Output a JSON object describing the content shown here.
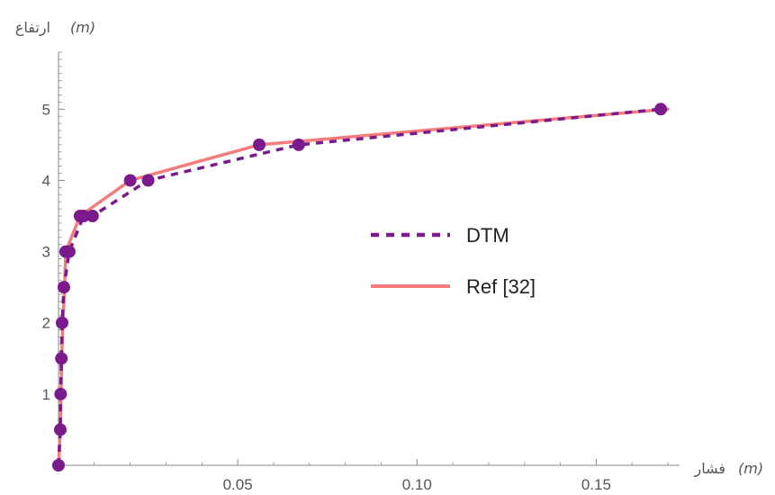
{
  "chart_data": {
    "type": "line",
    "x_label": "فشار",
    "x_unit": "(m)",
    "y_label": "ارتفاع",
    "y_unit": "(m)",
    "xlim": [
      0,
      0.172
    ],
    "ylim": [
      0,
      5.8
    ],
    "x_ticks": [
      0.05,
      0.1,
      0.15
    ],
    "x_tick_labels": [
      "0.05",
      "0.10",
      "0.15"
    ],
    "y_ticks": [
      1,
      2,
      3,
      4,
      5
    ],
    "y_tick_labels": [
      "1",
      "2",
      "3",
      "4",
      "5"
    ],
    "legend_position": "center-right",
    "colors": {
      "dtm": "#7a1a8c",
      "ref": "#f47c7c",
      "axis": "#888888"
    },
    "series": [
      {
        "name": "DTM",
        "style": "dashed-with-markers",
        "x": [
          0.0,
          0.0005,
          0.0006,
          0.0008,
          0.001,
          0.0015,
          0.003,
          0.007,
          0.0095,
          0.025,
          0.067,
          0.168
        ],
        "y": [
          0.0,
          0.5,
          1.0,
          1.5,
          2.0,
          2.5,
          3.0,
          3.5,
          3.5,
          4.0,
          4.5,
          5.0
        ]
      },
      {
        "name": "Ref [32]",
        "style": "solid",
        "x": [
          0.0,
          0.0005,
          0.0007,
          0.0009,
          0.0012,
          0.0017,
          0.002,
          0.006,
          0.02,
          0.056,
          0.17
        ],
        "y": [
          0.0,
          0.5,
          1.0,
          1.5,
          2.0,
          2.5,
          3.0,
          3.5,
          4.0,
          4.5,
          5.0
        ]
      }
    ],
    "ref_markers": {
      "x": [
        0.002,
        0.006,
        0.02,
        0.056
      ],
      "y": [
        3.0,
        3.5,
        4.0,
        4.5
      ]
    }
  }
}
